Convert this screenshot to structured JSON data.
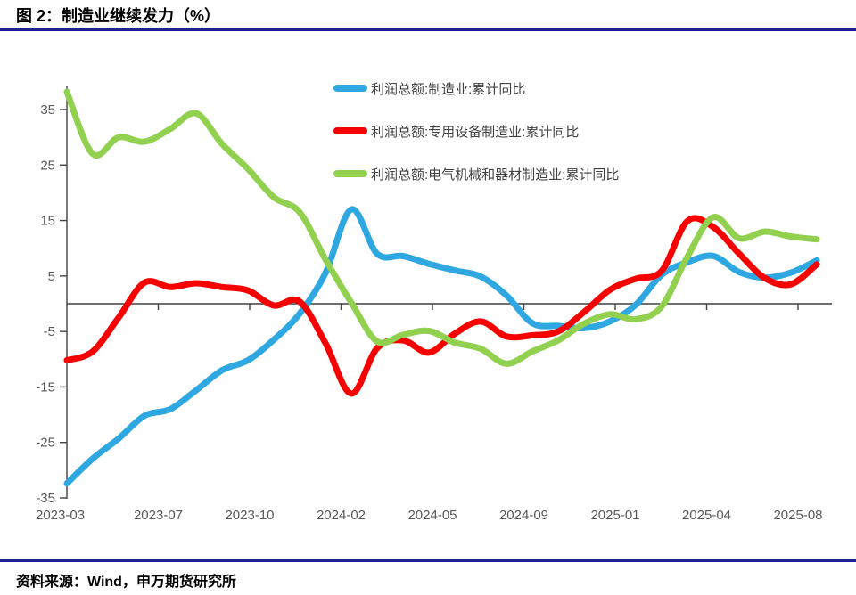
{
  "header": {
    "title": "图 2：制造业继续发力（%）"
  },
  "footer": {
    "source": "资料来源：Wind，申万期货研究所"
  },
  "chart_data": {
    "type": "line",
    "grid": false,
    "legend_position": "top-center",
    "ylim": [
      -35,
      39
    ],
    "yticks": [
      35,
      25,
      15,
      5,
      -5,
      -15,
      -25,
      -35
    ],
    "x_tick_labels": [
      "2023-03",
      "2023-07",
      "2023-10",
      "2024-02",
      "2024-05",
      "2024-09",
      "2025-01",
      "2025-04",
      "2025-08"
    ],
    "x": [
      "2023-03",
      "2023-04",
      "2023-05",
      "2023-06",
      "2023-07",
      "2023-08",
      "2023-09",
      "2023-10",
      "2023-11",
      "2023-12",
      "2024-01",
      "2024-02",
      "2024-03",
      "2024-04",
      "2024-05",
      "2024-06",
      "2024-07",
      "2024-08",
      "2024-09",
      "2024-10",
      "2024-11",
      "2024-12",
      "2025-01",
      "2025-02",
      "2025-03",
      "2025-04",
      "2025-05",
      "2025-06",
      "2025-07",
      "2025-08"
    ],
    "series": [
      {
        "name": "利润总额:制造业:累计同比",
        "color": "#2FA8E1",
        "values": [
          -32.4,
          -27.9,
          -24.3,
          -20.2,
          -19.0,
          -15.6,
          -12.0,
          -10.2,
          -6.5,
          -1.8,
          5.5,
          17.0,
          9.0,
          8.6,
          7.2,
          6.0,
          4.9,
          1.5,
          -3.5,
          -4.0,
          -4.4,
          -3.2,
          -0.2,
          5.2,
          7.5,
          8.6,
          5.7,
          4.7,
          5.6,
          7.8
        ]
      },
      {
        "name": "利润总额:专用设备制造业:累计同比",
        "color": "#F80000",
        "values": [
          -10.2,
          -8.6,
          -2.5,
          3.8,
          3.0,
          3.7,
          3.0,
          2.4,
          -0.3,
          0.4,
          -7.1,
          -16.2,
          -8.0,
          -6.6,
          -8.8,
          -5.4,
          -3.2,
          -5.9,
          -5.7,
          -5.0,
          -1.5,
          2.5,
          4.5,
          5.9,
          14.9,
          13.8,
          9.0,
          4.6,
          3.5,
          7.1
        ]
      },
      {
        "name": "利润总额:电气机械和器材制造业:累计同比",
        "color": "#92D050",
        "values": [
          38.2,
          27.0,
          30.0,
          29.2,
          31.5,
          34.3,
          28.8,
          24.3,
          19.2,
          16.5,
          8.0,
          0.2,
          -6.8,
          -5.6,
          -4.9,
          -7.0,
          -8.1,
          -10.8,
          -8.6,
          -6.6,
          -3.6,
          -1.9,
          -2.8,
          -0.5,
          8.5,
          15.6,
          11.8,
          13.0,
          12.1,
          11.6
        ]
      }
    ],
    "axis_color": "#404040",
    "tick_label_color": "#595959"
  }
}
